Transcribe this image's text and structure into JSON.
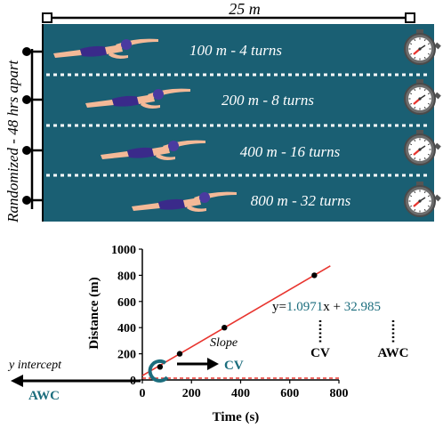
{
  "pool": {
    "length_label": "25 m",
    "side_label": "Randomized - 48 hrs apart",
    "lanes": [
      {
        "label": "100 m - 4 turns"
      },
      {
        "label": "200 m - 8 turns"
      },
      {
        "label": "400 m - 16 turns"
      },
      {
        "label": "800 m - 32 turns"
      }
    ],
    "colors": {
      "water": "#1a5f73",
      "lane_divider": "#ffffff",
      "skin": "#f4b997",
      "suit": "#3a2a8a",
      "cap": "#4a3aa0"
    }
  },
  "annotations": {
    "equation_prefix": "y=",
    "equation_slope": "1.0971",
    "equation_mid": "x + ",
    "equation_intercept": "32.985",
    "cv_label": "CV",
    "awc_label": "AWC",
    "slope_label": "Slope",
    "cv_arrow_label": "CV",
    "y_intercept_label": "y intercept",
    "awc_arrow_label": "AWC",
    "colors": {
      "teal": "#1b6d7d",
      "line": "#e8352f"
    }
  },
  "chart_data": {
    "type": "scatter",
    "xlabel": "Time (s)",
    "ylabel": "Distance (m)",
    "x_ticks": [
      0,
      200,
      400,
      600,
      800
    ],
    "y_ticks": [
      0,
      200,
      400,
      600,
      800,
      1000
    ],
    "xlim": [
      0,
      800
    ],
    "ylim": [
      0,
      1000
    ],
    "points": [
      {
        "x": 72,
        "y": 100
      },
      {
        "x": 152,
        "y": 200
      },
      {
        "x": 334,
        "y": 400
      },
      {
        "x": 700,
        "y": 800
      }
    ],
    "fit": {
      "slope": 1.0971,
      "intercept": 32.985
    },
    "fit_x_range": [
      0,
      765
    ]
  }
}
